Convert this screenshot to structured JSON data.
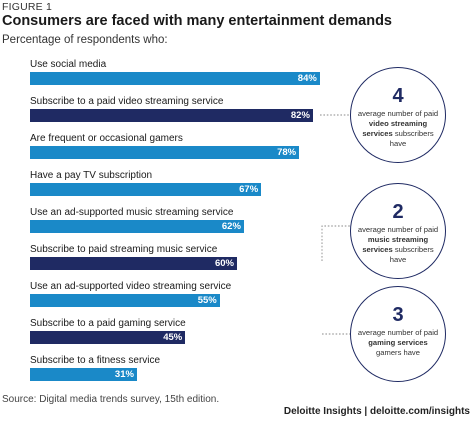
{
  "figure_label": "FIGURE 1",
  "chart_data": {
    "type": "bar",
    "orientation": "horizontal",
    "title": "Consumers are faced with many entertainment demands",
    "subtitle": "Percentage of respondents who:",
    "categories": [
      "Use social media",
      "Subscribe to a paid video streaming service",
      "Are frequent or occasional gamers",
      "Have a pay TV subscription",
      "Use an ad-supported music streaming service",
      "Subscribe to paid streaming music service",
      "Use an ad-supported video streaming service",
      "Subscribe to a paid gaming service",
      "Subscribe to a fitness service"
    ],
    "values": [
      84,
      82,
      78,
      67,
      62,
      60,
      55,
      45,
      31
    ],
    "value_labels": [
      "84%",
      "82%",
      "78%",
      "67%",
      "62%",
      "60%",
      "55%",
      "45%",
      "31%"
    ],
    "xlim": [
      0,
      100
    ],
    "highlighted": [
      false,
      true,
      false,
      false,
      false,
      true,
      false,
      true,
      false
    ],
    "colors": {
      "default": "#1a89c8",
      "highlight": "#1f2a63"
    }
  },
  "callouts": [
    {
      "number": "4",
      "pre": "average number of paid",
      "bold": "video streaming services",
      "post": "subscribers have"
    },
    {
      "number": "2",
      "pre": "average number of paid",
      "bold": "music streaming services",
      "post": "subscribers have"
    },
    {
      "number": "3",
      "pre": "average number of paid",
      "bold": "gaming services",
      "post": "gamers have"
    }
  ],
  "source": "Source: Digital media trends survey, 15th edition.",
  "credit": "Deloitte Insights | deloitte.com/insights"
}
